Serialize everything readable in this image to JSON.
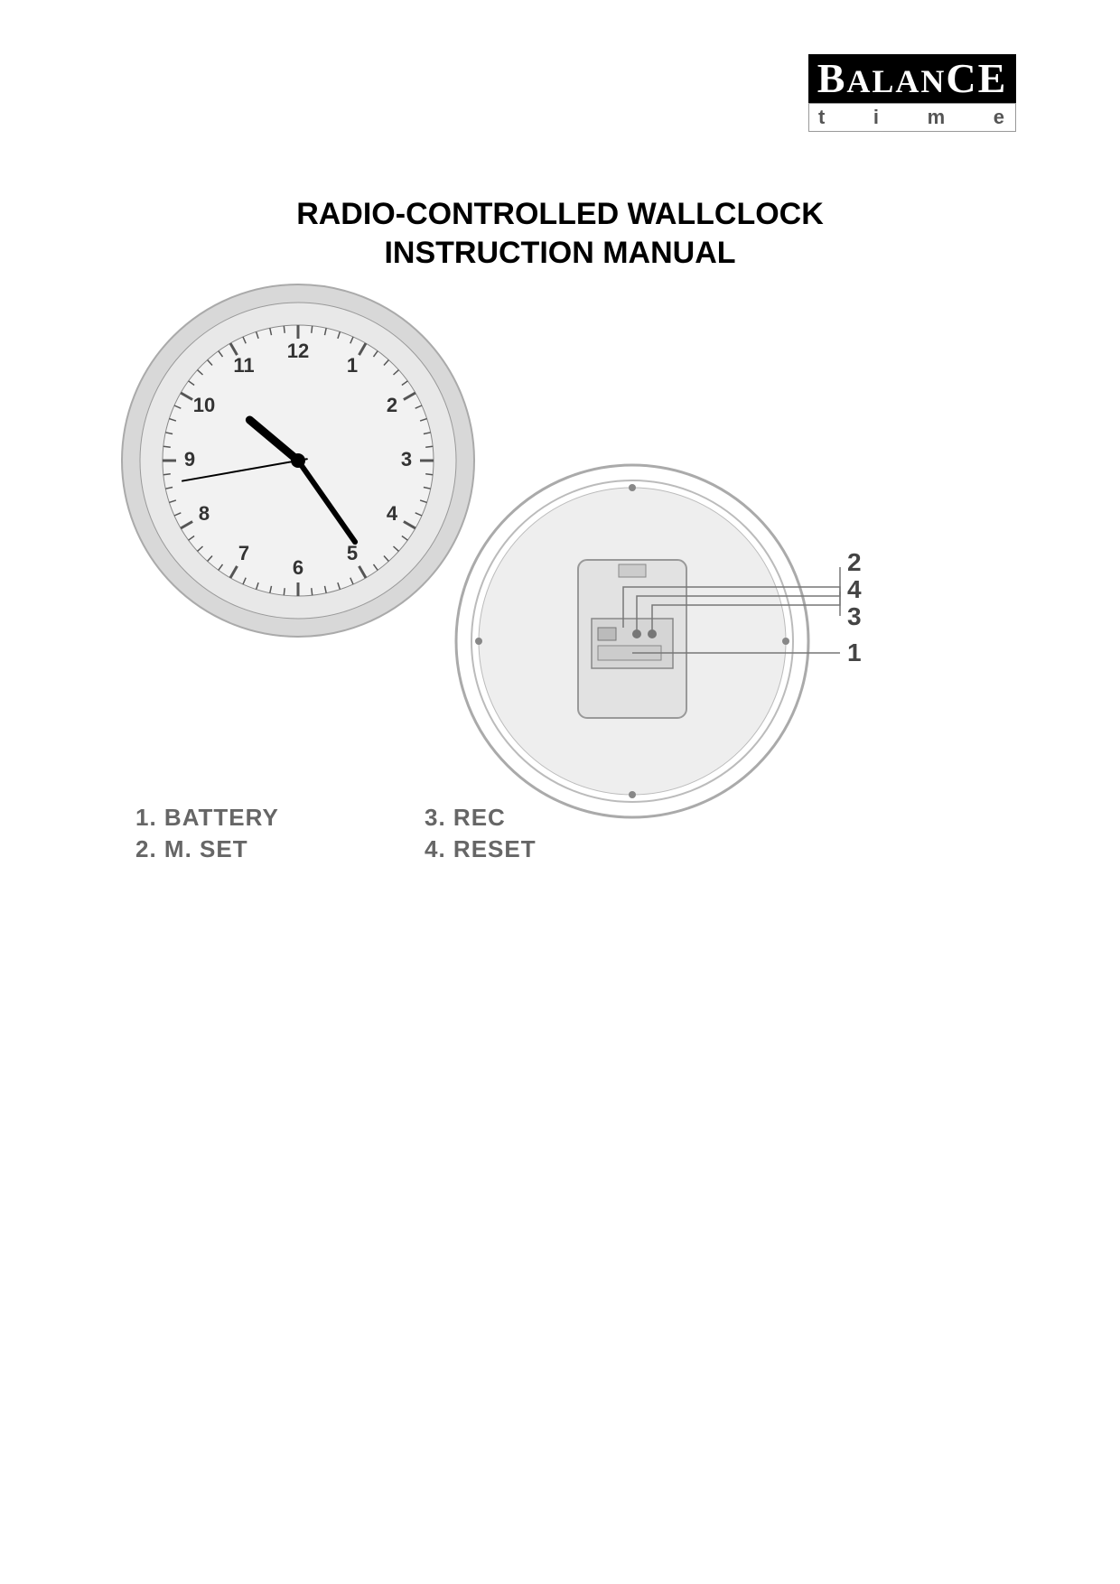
{
  "logo": {
    "top": "BALANCE",
    "bottom_letters": [
      "t",
      "i",
      "m",
      "e"
    ]
  },
  "title_line1": "RADIO-CONTROLLED WALLCLOCK",
  "title_line2": "INSTRUCTION MANUAL",
  "clock": {
    "numerals": [
      "12",
      "1",
      "2",
      "3",
      "4",
      "5",
      "6",
      "7",
      "8",
      "9",
      "10",
      "11"
    ],
    "hour_hand_angle_deg": 310,
    "minute_hand_angle_deg": 145,
    "second_hand_angle_deg": 260,
    "face_color": "#e8e8e8",
    "rim_color": "#d0d0d0",
    "tick_color": "#555555",
    "hand_color": "#000000",
    "numeral_fontsize": 22
  },
  "back_view": {
    "rim_color": "#bbbbbb",
    "panel_color": "#dddddd",
    "callouts": [
      "2",
      "4",
      "3",
      "1"
    ],
    "callout_color": "#444444",
    "callout_fontsize": 28
  },
  "legend_items": [
    {
      "n": "1.",
      "label": "BATTERY"
    },
    {
      "n": "2.",
      "label": "M. SET"
    },
    {
      "n": "3.",
      "label": "REC"
    },
    {
      "n": "4.",
      "label": "RESET"
    }
  ],
  "colors": {
    "page_bg": "#ffffff",
    "text": "#000000",
    "faded_text": "#666666"
  }
}
